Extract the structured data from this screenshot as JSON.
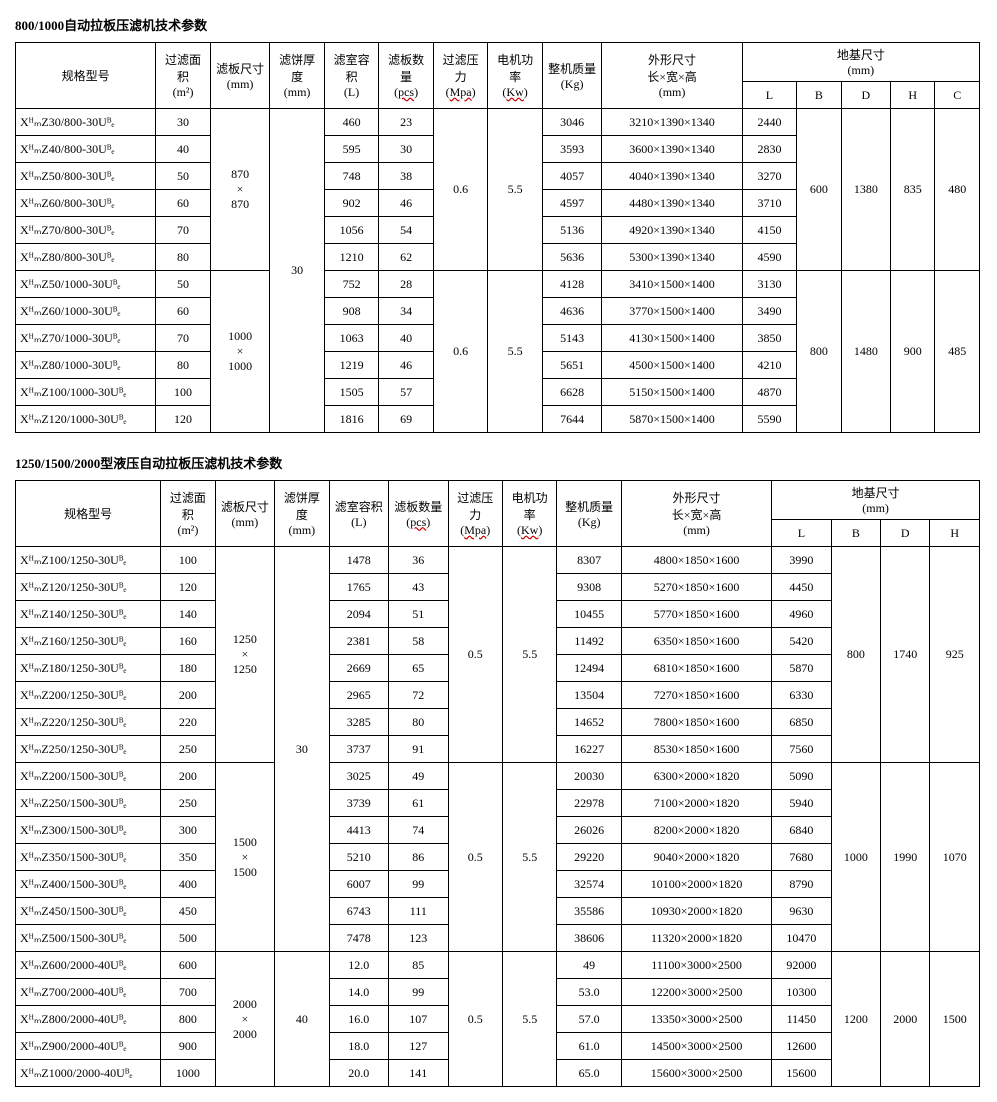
{
  "table1": {
    "title": "800/1000自动拉板压滤机技术参数",
    "headers": {
      "model": "规格型号",
      "area": "过滤面积",
      "area_unit": "(m²)",
      "plate_size": "滤板尺寸",
      "plate_size_unit": "(mm)",
      "cake_thick": "滤饼厚度",
      "cake_thick_unit": "(mm)",
      "chamber_vol": "滤室容积",
      "chamber_vol_unit": "(L)",
      "plate_qty": "滤板数量",
      "plate_qty_unit": "(pcs)",
      "pressure": "过滤压力",
      "pressure_unit": "(Mpa)",
      "motor": "电机功率",
      "motor_unit": "(Kw)",
      "weight": "整机质量",
      "weight_unit": "(Kg)",
      "dims": "外形尺寸",
      "dims_sub": "长×宽×高",
      "dims_unit": "(mm)",
      "foundation": "地基尺寸",
      "foundation_unit": "(mm)",
      "L": "L",
      "B": "B",
      "D": "D",
      "H": "H",
      "C": "C"
    },
    "group1": {
      "plate_size_1": "870",
      "plate_size_2": "×",
      "plate_size_3": "870",
      "cake_thick": "30",
      "pressure": "0.6",
      "motor": "5.5",
      "B": "600",
      "D": "1380",
      "H": "835",
      "C": "480",
      "rows": [
        {
          "model": "XᴴₘZ30/800-30Uᴮₑ",
          "area": "30",
          "vol": "460",
          "qty": "23",
          "weight": "3046",
          "dims": "3210×1390×1340",
          "L": "2440"
        },
        {
          "model": "XᴴₘZ40/800-30Uᴮₑ",
          "area": "40",
          "vol": "595",
          "qty": "30",
          "weight": "3593",
          "dims": "3600×1390×1340",
          "L": "2830"
        },
        {
          "model": "XᴴₘZ50/800-30Uᴮₑ",
          "area": "50",
          "vol": "748",
          "qty": "38",
          "weight": "4057",
          "dims": "4040×1390×1340",
          "L": "3270"
        },
        {
          "model": "XᴴₘZ60/800-30Uᴮₑ",
          "area": "60",
          "vol": "902",
          "qty": "46",
          "weight": "4597",
          "dims": "4480×1390×1340",
          "L": "3710"
        },
        {
          "model": "XᴴₘZ70/800-30Uᴮₑ",
          "area": "70",
          "vol": "1056",
          "qty": "54",
          "weight": "5136",
          "dims": "4920×1390×1340",
          "L": "4150"
        },
        {
          "model": "XᴴₘZ80/800-30Uᴮₑ",
          "area": "80",
          "vol": "1210",
          "qty": "62",
          "weight": "5636",
          "dims": "5300×1390×1340",
          "L": "4590"
        }
      ]
    },
    "group2": {
      "plate_size_1": "1000",
      "plate_size_2": "×",
      "plate_size_3": "1000",
      "pressure": "0.6",
      "motor": "5.5",
      "B": "800",
      "D": "1480",
      "H": "900",
      "C": "485",
      "rows": [
        {
          "model": "XᴴₘZ50/1000-30Uᴮₑ",
          "area": "50",
          "vol": "752",
          "qty": "28",
          "weight": "4128",
          "dims": "3410×1500×1400",
          "L": "3130"
        },
        {
          "model": "XᴴₘZ60/1000-30Uᴮₑ",
          "area": "60",
          "vol": "908",
          "qty": "34",
          "weight": "4636",
          "dims": "3770×1500×1400",
          "L": "3490"
        },
        {
          "model": "XᴴₘZ70/1000-30Uᴮₑ",
          "area": "70",
          "vol": "1063",
          "qty": "40",
          "weight": "5143",
          "dims": "4130×1500×1400",
          "L": "3850"
        },
        {
          "model": "XᴴₘZ80/1000-30Uᴮₑ",
          "area": "80",
          "vol": "1219",
          "qty": "46",
          "weight": "5651",
          "dims": "4500×1500×1400",
          "L": "4210"
        },
        {
          "model": "XᴴₘZ100/1000-30Uᴮₑ",
          "area": "100",
          "vol": "1505",
          "qty": "57",
          "weight": "6628",
          "dims": "5150×1500×1400",
          "L": "4870"
        },
        {
          "model": "XᴴₘZ120/1000-30Uᴮₑ",
          "area": "120",
          "vol": "1816",
          "qty": "69",
          "weight": "7644",
          "dims": "5870×1500×1400",
          "L": "5590"
        }
      ]
    }
  },
  "table2": {
    "title": "1250/1500/2000型液压自动拉板压滤机技术参数",
    "headers": {
      "model": "规格型号",
      "area": "过滤面积",
      "area_unit": "(m²)",
      "plate_size": "滤板尺寸",
      "plate_size_unit": "(mm)",
      "cake_thick": "滤饼厚度",
      "cake_thick_unit": "(mm)",
      "chamber_vol": "滤室容积",
      "chamber_vol_unit": "(L)",
      "plate_qty": "滤板数量",
      "plate_qty_unit": "(pcs)",
      "pressure": "过滤压力",
      "pressure_unit": "(Mpa)",
      "motor": "电机功率",
      "motor_unit": "(Kw)",
      "weight": "整机质量",
      "weight_unit": "(Kg)",
      "dims": "外形尺寸",
      "dims_sub": "长×宽×高",
      "dims_unit": "(mm)",
      "foundation": "地基尺寸",
      "foundation_unit": "(mm)",
      "L": "L",
      "B": "B",
      "D": "D",
      "H": "H"
    },
    "group1": {
      "plate_size_1": "1250",
      "plate_size_2": "×",
      "plate_size_3": "1250",
      "cake_thick": "30",
      "pressure": "0.5",
      "motor": "5.5",
      "B": "800",
      "D": "1740",
      "H": "925",
      "rows": [
        {
          "model": "XᴴₘZ100/1250-30Uᴮₑ",
          "area": "100",
          "vol": "1478",
          "qty": "36",
          "weight": "8307",
          "dims": "4800×1850×1600",
          "L": "3990"
        },
        {
          "model": "XᴴₘZ120/1250-30Uᴮₑ",
          "area": "120",
          "vol": "1765",
          "qty": "43",
          "weight": "9308",
          "dims": "5270×1850×1600",
          "L": "4450"
        },
        {
          "model": "XᴴₘZ140/1250-30Uᴮₑ",
          "area": "140",
          "vol": "2094",
          "qty": "51",
          "weight": "10455",
          "dims": "5770×1850×1600",
          "L": "4960"
        },
        {
          "model": "XᴴₘZ160/1250-30Uᴮₑ",
          "area": "160",
          "vol": "2381",
          "qty": "58",
          "weight": "11492",
          "dims": "6350×1850×1600",
          "L": "5420"
        },
        {
          "model": "XᴴₘZ180/1250-30Uᴮₑ",
          "area": "180",
          "vol": "2669",
          "qty": "65",
          "weight": "12494",
          "dims": "6810×1850×1600",
          "L": "5870"
        },
        {
          "model": "XᴴₘZ200/1250-30Uᴮₑ",
          "area": "200",
          "vol": "2965",
          "qty": "72",
          "weight": "13504",
          "dims": "7270×1850×1600",
          "L": "6330"
        },
        {
          "model": "XᴴₘZ220/1250-30Uᴮₑ",
          "area": "220",
          "vol": "3285",
          "qty": "80",
          "weight": "14652",
          "dims": "7800×1850×1600",
          "L": "6850"
        },
        {
          "model": "XᴴₘZ250/1250-30Uᴮₑ",
          "area": "250",
          "vol": "3737",
          "qty": "91",
          "weight": "16227",
          "dims": "8530×1850×1600",
          "L": "7560"
        }
      ]
    },
    "group2": {
      "plate_size_1": "1500",
      "plate_size_2": "×",
      "plate_size_3": "1500",
      "pressure": "0.5",
      "motor": "5.5",
      "B": "1000",
      "D": "1990",
      "H": "1070",
      "rows": [
        {
          "model": "XᴴₘZ200/1500-30Uᴮₑ",
          "area": "200",
          "vol": "3025",
          "qty": "49",
          "weight": "20030",
          "dims": "6300×2000×1820",
          "L": "5090"
        },
        {
          "model": "XᴴₘZ250/1500-30Uᴮₑ",
          "area": "250",
          "vol": "3739",
          "qty": "61",
          "weight": "22978",
          "dims": "7100×2000×1820",
          "L": "5940"
        },
        {
          "model": "XᴴₘZ300/1500-30Uᴮₑ",
          "area": "300",
          "vol": "4413",
          "qty": "74",
          "weight": "26026",
          "dims": "8200×2000×1820",
          "L": "6840"
        },
        {
          "model": "XᴴₘZ350/1500-30Uᴮₑ",
          "area": "350",
          "vol": "5210",
          "qty": "86",
          "weight": "29220",
          "dims": "9040×2000×1820",
          "L": "7680"
        },
        {
          "model": "XᴴₘZ400/1500-30Uᴮₑ",
          "area": "400",
          "vol": "6007",
          "qty": "99",
          "weight": "32574",
          "dims": "10100×2000×1820",
          "L": "8790"
        },
        {
          "model": "XᴴₘZ450/1500-30Uᴮₑ",
          "area": "450",
          "vol": "6743",
          "qty": "111",
          "weight": "35586",
          "dims": "10930×2000×1820",
          "L": "9630"
        },
        {
          "model": "XᴴₘZ500/1500-30Uᴮₑ",
          "area": "500",
          "vol": "7478",
          "qty": "123",
          "weight": "38606",
          "dims": "11320×2000×1820",
          "L": "10470"
        }
      ]
    },
    "group3": {
      "plate_size_1": "2000",
      "plate_size_2": "×",
      "plate_size_3": "2000",
      "cake_thick": "40",
      "pressure": "0.5",
      "motor": "5.5",
      "B": "1200",
      "D": "2000",
      "H": "1500",
      "rows": [
        {
          "model": "XᴴₘZ600/2000-40Uᴮₑ",
          "area": "600",
          "vol": "12.0",
          "qty": "85",
          "weight": "49",
          "dims": "11100×3000×2500",
          "L": "92000"
        },
        {
          "model": "XᴴₘZ700/2000-40Uᴮₑ",
          "area": "700",
          "vol": "14.0",
          "qty": "99",
          "weight": "53.0",
          "dims": "12200×3000×2500",
          "L": "10300"
        },
        {
          "model": "XᴴₘZ800/2000-40Uᴮₑ",
          "area": "800",
          "vol": "16.0",
          "qty": "107",
          "weight": "57.0",
          "dims": "13350×3000×2500",
          "L": "11450"
        },
        {
          "model": "XᴴₘZ900/2000-40Uᴮₑ",
          "area": "900",
          "vol": "18.0",
          "qty": "127",
          "weight": "61.0",
          "dims": "14500×3000×2500",
          "L": "12600"
        },
        {
          "model": "XᴴₘZ1000/2000-40Uᴮₑ",
          "area": "1000",
          "vol": "20.0",
          "qty": "141",
          "weight": "65.0",
          "dims": "15600×3000×2500",
          "L": "15600"
        }
      ]
    }
  }
}
